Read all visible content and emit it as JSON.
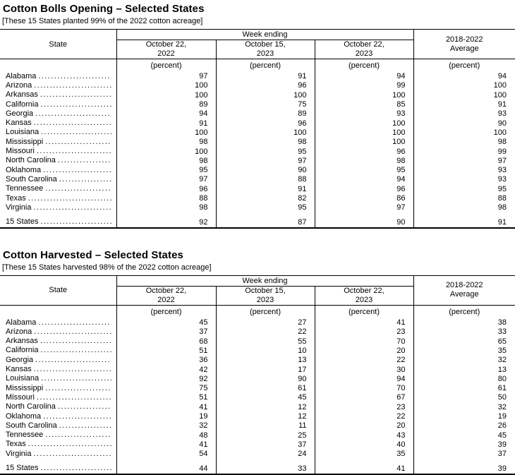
{
  "tables": [
    {
      "title": "Cotton Bolls Opening – Selected States",
      "subtitle": "[These 15 States planted 99% of the 2022 cotton acreage]",
      "state_label": "State",
      "week_ending_label": "Week ending",
      "unit_label": "(percent)",
      "dates": [
        {
          "line1": "October 22,",
          "line2": "2022"
        },
        {
          "line1": "October 15,",
          "line2": "2023"
        },
        {
          "line1": "October 22,",
          "line2": "2023"
        }
      ],
      "average": {
        "line1": "2018-2022",
        "line2": "Average"
      },
      "rows": [
        {
          "state": "Alabama",
          "values": [
            97,
            91,
            94,
            94
          ]
        },
        {
          "state": "Arizona",
          "values": [
            100,
            96,
            99,
            100
          ]
        },
        {
          "state": "Arkansas",
          "values": [
            100,
            100,
            100,
            100
          ]
        },
        {
          "state": "California",
          "values": [
            89,
            75,
            85,
            91
          ]
        },
        {
          "state": "Georgia",
          "values": [
            94,
            89,
            93,
            93
          ]
        },
        {
          "state": "Kansas",
          "values": [
            91,
            96,
            100,
            90
          ]
        },
        {
          "state": "Louisiana",
          "values": [
            100,
            100,
            100,
            100
          ]
        },
        {
          "state": "Mississippi",
          "values": [
            98,
            98,
            100,
            98
          ]
        },
        {
          "state": "Missouri",
          "values": [
            100,
            95,
            96,
            99
          ]
        },
        {
          "state": "North Carolina",
          "values": [
            98,
            97,
            98,
            97
          ]
        },
        {
          "state": "Oklahoma",
          "values": [
            95,
            90,
            95,
            93
          ]
        },
        {
          "state": "South Carolina",
          "values": [
            97,
            88,
            94,
            93
          ]
        },
        {
          "state": "Tennessee",
          "values": [
            96,
            91,
            96,
            95
          ]
        },
        {
          "state": "Texas",
          "values": [
            88,
            82,
            86,
            88
          ]
        },
        {
          "state": "Virginia",
          "values": [
            98,
            95,
            97,
            98
          ]
        }
      ],
      "total_row": {
        "state": "15 States",
        "values": [
          92,
          87,
          90,
          91
        ]
      }
    },
    {
      "title": "Cotton Harvested – Selected States",
      "subtitle": "[These 15 States harvested 98% of the 2022 cotton acreage]",
      "state_label": "State",
      "week_ending_label": "Week ending",
      "unit_label": "(percent)",
      "dates": [
        {
          "line1": "October 22,",
          "line2": "2022"
        },
        {
          "line1": "October 15,",
          "line2": "2023"
        },
        {
          "line1": "October 22,",
          "line2": "2023"
        }
      ],
      "average": {
        "line1": "2018-2022",
        "line2": "Average"
      },
      "rows": [
        {
          "state": "Alabama",
          "values": [
            45,
            27,
            41,
            38
          ]
        },
        {
          "state": "Arizona",
          "values": [
            37,
            22,
            23,
            33
          ]
        },
        {
          "state": "Arkansas",
          "values": [
            68,
            55,
            70,
            65
          ]
        },
        {
          "state": "California",
          "values": [
            51,
            10,
            20,
            35
          ]
        },
        {
          "state": "Georgia",
          "values": [
            36,
            13,
            22,
            32
          ]
        },
        {
          "state": "Kansas",
          "values": [
            42,
            17,
            30,
            13
          ]
        },
        {
          "state": "Louisiana",
          "values": [
            92,
            90,
            94,
            80
          ]
        },
        {
          "state": "Mississippi",
          "values": [
            75,
            61,
            70,
            61
          ]
        },
        {
          "state": "Missouri",
          "values": [
            51,
            45,
            67,
            50
          ]
        },
        {
          "state": "North Carolina",
          "values": [
            41,
            12,
            23,
            32
          ]
        },
        {
          "state": "Oklahoma",
          "values": [
            19,
            12,
            22,
            19
          ]
        },
        {
          "state": "South Carolina",
          "values": [
            32,
            11,
            20,
            26
          ]
        },
        {
          "state": "Tennessee",
          "values": [
            48,
            25,
            43,
            45
          ]
        },
        {
          "state": "Texas",
          "values": [
            41,
            37,
            40,
            39
          ]
        },
        {
          "state": "Virginia",
          "values": [
            54,
            24,
            35,
            37
          ]
        }
      ],
      "total_row": {
        "state": "15 States",
        "values": [
          44,
          33,
          41,
          39
        ]
      }
    }
  ]
}
